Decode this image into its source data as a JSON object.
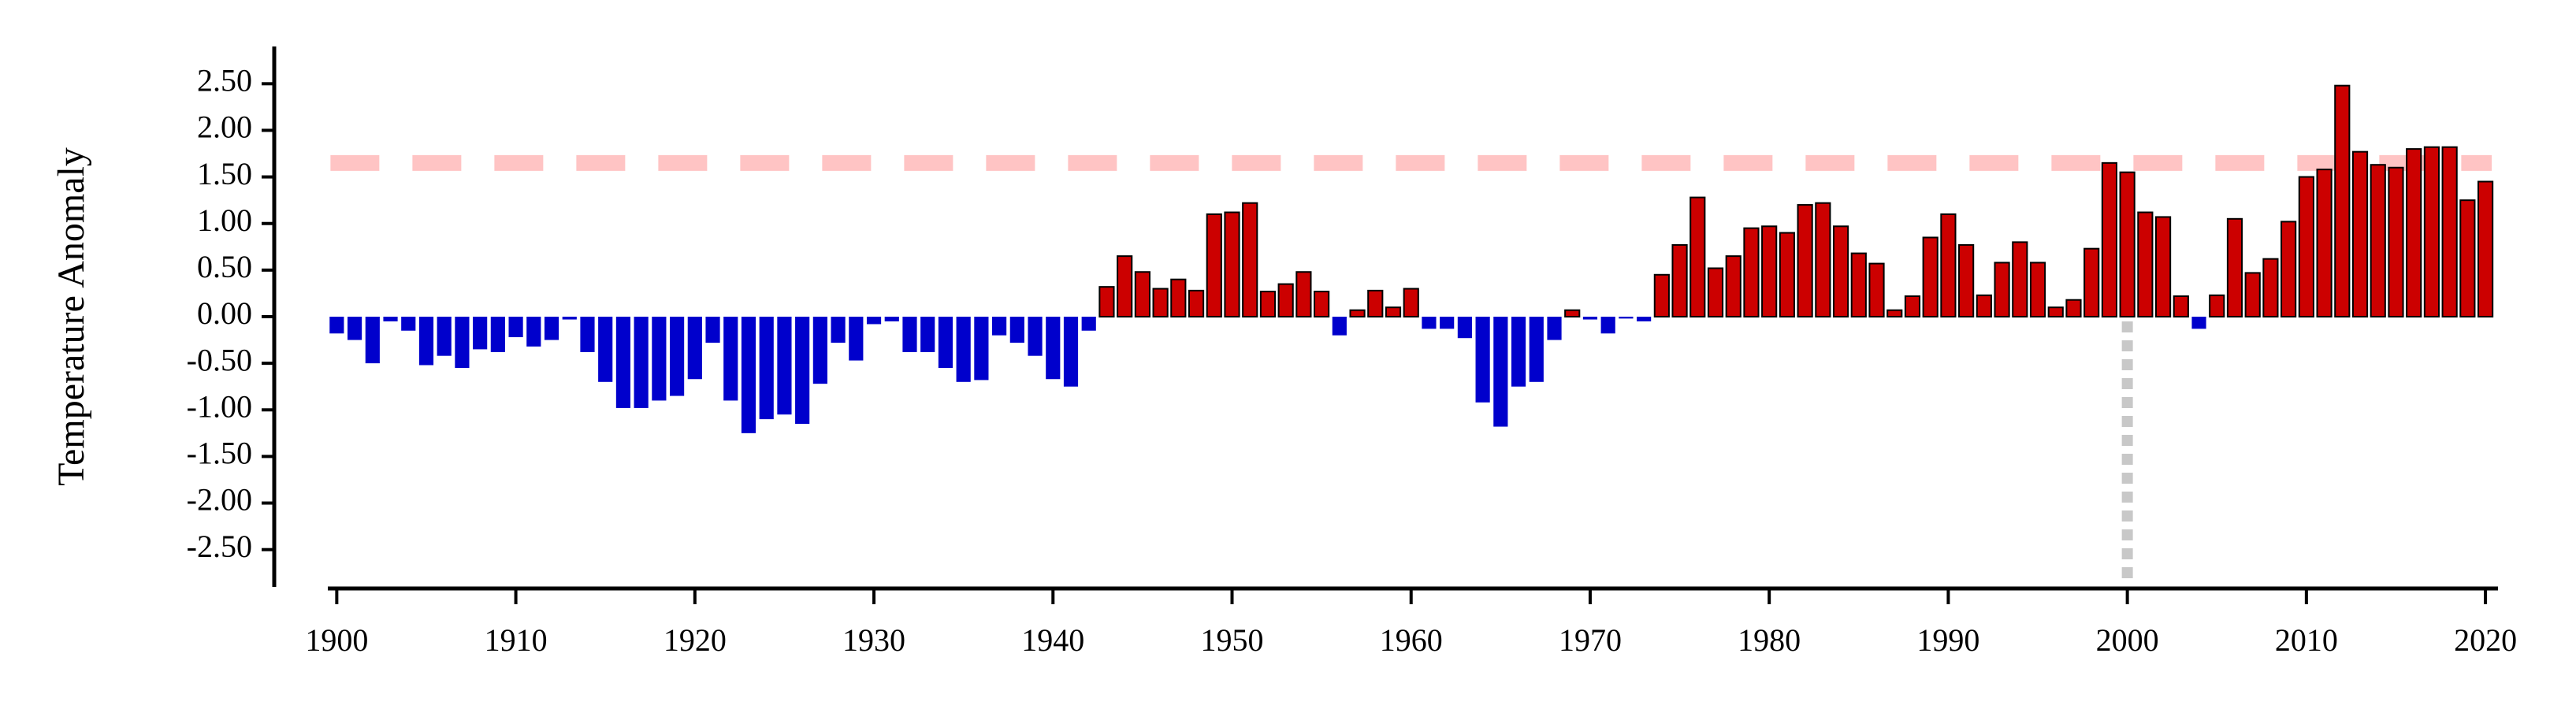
{
  "chart_data": {
    "type": "bar",
    "y_label": "Temperature Anomaly",
    "x": [
      1900,
      1901,
      1902,
      1903,
      1904,
      1905,
      1906,
      1907,
      1908,
      1909,
      1910,
      1911,
      1912,
      1913,
      1914,
      1915,
      1916,
      1917,
      1918,
      1919,
      1920,
      1921,
      1922,
      1923,
      1924,
      1925,
      1926,
      1927,
      1928,
      1929,
      1930,
      1931,
      1932,
      1933,
      1934,
      1935,
      1936,
      1937,
      1938,
      1939,
      1940,
      1941,
      1942,
      1943,
      1944,
      1945,
      1946,
      1947,
      1948,
      1949,
      1950,
      1951,
      1952,
      1953,
      1954,
      1955,
      1956,
      1957,
      1958,
      1959,
      1960,
      1961,
      1962,
      1963,
      1964,
      1965,
      1966,
      1967,
      1968,
      1969,
      1970,
      1971,
      1972,
      1973,
      1974,
      1975,
      1976,
      1977,
      1978,
      1979,
      1980,
      1981,
      1982,
      1983,
      1984,
      1985,
      1986,
      1987,
      1988,
      1989,
      1990,
      1991,
      1992,
      1993,
      1994,
      1995,
      1996,
      1997,
      1998,
      1999,
      2000,
      2001,
      2002,
      2003,
      2004,
      2005,
      2006,
      2007,
      2008,
      2009,
      2010,
      2011,
      2012,
      2013,
      2014,
      2015,
      2016,
      2017,
      2018,
      2019,
      2020
    ],
    "values": [
      -0.18,
      -0.25,
      -0.5,
      -0.05,
      -0.15,
      -0.52,
      -0.42,
      -0.55,
      -0.35,
      -0.38,
      -0.22,
      -0.32,
      -0.25,
      -0.03,
      -0.38,
      -0.7,
      -0.98,
      -0.98,
      -0.9,
      -0.85,
      -0.67,
      -0.28,
      -0.9,
      -1.25,
      -1.1,
      -1.05,
      -1.15,
      -0.72,
      -0.28,
      -0.47,
      -0.08,
      -0.05,
      -0.38,
      -0.38,
      -0.55,
      -0.7,
      -0.68,
      -0.2,
      -0.28,
      -0.42,
      -0.67,
      -0.75,
      -0.15,
      0.32,
      0.65,
      0.48,
      0.3,
      0.4,
      0.28,
      1.1,
      1.12,
      1.22,
      0.27,
      0.35,
      0.48,
      0.27,
      -0.2,
      0.07,
      0.28,
      0.1,
      0.3,
      -0.13,
      -0.13,
      -0.23,
      -0.92,
      -1.18,
      -0.75,
      -0.7,
      -0.25,
      0.07,
      -0.03,
      -0.18,
      -0.02,
      -0.05,
      0.45,
      0.77,
      1.28,
      0.52,
      0.65,
      0.95,
      0.97,
      0.9,
      1.2,
      1.22,
      0.97,
      0.68,
      0.57,
      0.07,
      0.22,
      0.85,
      1.1,
      0.77,
      0.23,
      0.58,
      0.8,
      0.58,
      0.1,
      0.18,
      0.73,
      1.65,
      1.55,
      1.12,
      1.07,
      0.22,
      -0.13,
      0.23,
      1.05,
      0.47,
      0.62,
      1.02,
      1.5,
      1.58,
      2.48,
      1.77,
      1.63,
      1.6,
      1.8,
      1.82,
      1.82,
      1.25,
      1.45
    ],
    "positive_color": "#cc0000",
    "negative_color": "#0000cc",
    "hline": 1.65,
    "hline_color": "#ffc4c4",
    "vline": 2000,
    "vline_color": "#c8c8c8",
    "xlim": [
      1899.5,
      2020.7
    ],
    "xticks": [
      1900,
      1910,
      1920,
      1930,
      1940,
      1950,
      1960,
      1970,
      1980,
      1990,
      2000,
      2010,
      2020
    ],
    "ylim": [
      -2.9,
      2.9
    ],
    "yticks": [
      {
        "value": -2.5,
        "label": "-2.50"
      },
      {
        "value": -2.0,
        "label": "-2.00"
      },
      {
        "value": -1.5,
        "label": "-1.50"
      },
      {
        "value": -1.0,
        "label": "-1.00"
      },
      {
        "value": -0.5,
        "label": "-0.50"
      },
      {
        "value": 0,
        "label": "0.00"
      },
      {
        "value": 0.5,
        "label": "0.50"
      },
      {
        "value": 1.0,
        "label": "1.00"
      },
      {
        "value": 1.5,
        "label": "1.50"
      },
      {
        "value": 2.0,
        "label": "2.00"
      },
      {
        "value": 2.5,
        "label": "2.50"
      }
    ]
  }
}
